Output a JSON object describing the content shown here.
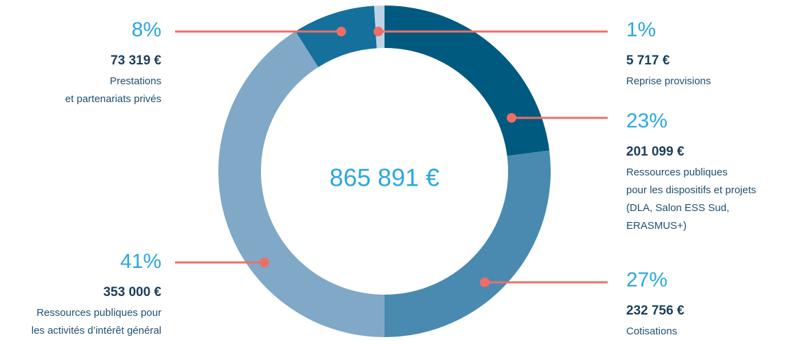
{
  "chart_data": {
    "type": "donut",
    "center_label": "865 891 €",
    "categories": [
      "Ressources publiques pour les dispositifs et projets",
      "Cotisations",
      "Ressources publiques pour les activités d'intérêt général",
      "Prestations et partenariats privés",
      "Reprise provisions"
    ],
    "series": [
      {
        "name": "Ressources",
        "values": [
          23,
          27,
          41,
          8,
          1
        ],
        "value_labels": [
          "23%",
          "27%",
          "41%",
          "8%",
          "1%"
        ],
        "colors": [
          "#005a80",
          "#4a8ab0",
          "#80a8c7",
          "#16709c",
          "#bcd3e6"
        ]
      }
    ],
    "amount_labels": [
      "201 099 €",
      "232 756 €",
      "353 000 €",
      "73 319 €",
      "5 717 €"
    ],
    "descriptions": [
      [
        "Ressources publiques",
        "pour les dispositifs et projets",
        "(DLA, Salon ESS Sud,",
        "ERASMUS+)"
      ],
      [
        "Cotisations"
      ],
      [
        "Ressources publiques pour",
        "les activités d’intérêt général"
      ],
      [
        "Prestations",
        "et partenariats privés"
      ],
      [
        "Reprise provisions"
      ]
    ],
    "leader_color": "#ee6e66"
  }
}
